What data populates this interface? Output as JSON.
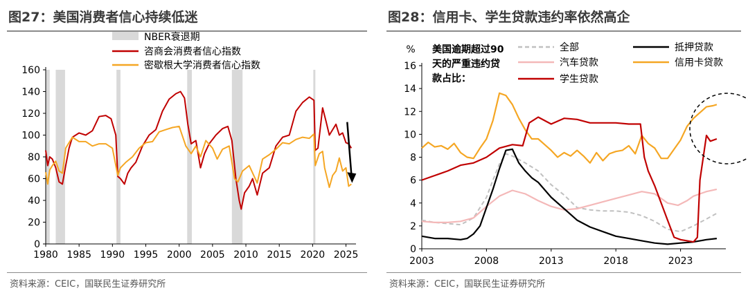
{
  "left_panel": {
    "title": "图27：美国消费者信心持续低迷",
    "source": "资料来源：CEIC，国联民生证券研究所"
  },
  "right_panel": {
    "title": "图28：信用卡、学生贷款违约率依然高企",
    "source": "资料来源：CEIC，国联民生证券研究所"
  },
  "colors": {
    "red": "#c00000",
    "orange": "#f5a623",
    "gray_band": "#d9d9d9",
    "black": "#000000",
    "pink": "#f4b8b8",
    "gray_dash": "#c0c0c0"
  },
  "chart_data": [
    {
      "type": "line",
      "title": "图27：美国消费者信心持续低迷",
      "xlabel": "",
      "ylabel": "",
      "xlim": [
        1980,
        2026.5
      ],
      "ylim": [
        0,
        160
      ],
      "xticks": [
        1980,
        1985,
        1990,
        1995,
        2000,
        2005,
        2010,
        2015,
        2020,
        2025
      ],
      "yticks": [
        0,
        20,
        40,
        60,
        80,
        100,
        120,
        140,
        160
      ],
      "legend": [
        "NBER衰退期",
        "咨商会消费者信心指数",
        "密歇根大学消费者信心指数"
      ],
      "recessions": [
        [
          1980.0,
          1980.6
        ],
        [
          1981.5,
          1982.9
        ],
        [
          1990.6,
          1991.2
        ],
        [
          2001.2,
          2001.9
        ],
        [
          2007.9,
          2009.5
        ],
        [
          2020.1,
          2020.4
        ]
      ],
      "series": [
        {
          "name": "咨商会消费者信心指数",
          "color": "#c00000",
          "x": [
            1980.0,
            1980.3,
            1980.6,
            1981.0,
            1981.5,
            1982.0,
            1982.5,
            1983.0,
            1983.5,
            1984.0,
            1985.0,
            1986.0,
            1987.0,
            1988.0,
            1989.0,
            1989.8,
            1990.5,
            1990.8,
            1991.2,
            1991.8,
            1992.3,
            1992.8,
            1993.5,
            1994.5,
            1995.5,
            1996.5,
            1997.5,
            1998.5,
            1999.5,
            2000.2,
            2000.8,
            2001.3,
            2001.8,
            2002.5,
            2003.2,
            2003.8,
            2004.5,
            2005.5,
            2006.5,
            2007.3,
            2007.9,
            2008.5,
            2009.0,
            2009.3,
            2009.8,
            2010.5,
            2011.0,
            2011.7,
            2012.5,
            2013.5,
            2014.5,
            2015.5,
            2016.5,
            2017.5,
            2018.5,
            2019.5,
            2020.2,
            2020.4,
            2020.8,
            2021.5,
            2022.0,
            2022.5,
            2023.0,
            2023.5,
            2024.0,
            2024.5,
            2025.0,
            2025.4,
            2025.8
          ],
          "values": [
            86,
            72,
            80,
            78,
            70,
            57,
            55,
            72,
            88,
            98,
            102,
            100,
            104,
            117,
            118,
            115,
            100,
            62,
            60,
            55,
            65,
            70,
            75,
            90,
            100,
            105,
            122,
            133,
            138,
            140,
            134,
            110,
            92,
            95,
            70,
            83,
            92,
            100,
            106,
            108,
            95,
            60,
            40,
            32,
            47,
            53,
            60,
            45,
            65,
            70,
            90,
            98,
            100,
            122,
            130,
            135,
            132,
            86,
            88,
            125,
            113,
            100,
            105,
            110,
            100,
            102,
            93,
            92,
            88
          ]
        },
        {
          "name": "密歇根大学消费者信心指数",
          "color": "#f5a623",
          "x": [
            1980.0,
            1980.3,
            1980.6,
            1981.0,
            1981.5,
            1982.0,
            1982.5,
            1983.0,
            1984.0,
            1985.0,
            1986.0,
            1987.0,
            1988.0,
            1989.0,
            1990.0,
            1990.8,
            1991.2,
            1992.0,
            1993.0,
            1994.0,
            1995.0,
            1996.0,
            1997.0,
            1998.0,
            1999.0,
            2000.0,
            2001.0,
            2001.8,
            2002.5,
            2003.2,
            2004.0,
            2005.0,
            2005.7,
            2006.5,
            2007.5,
            2008.3,
            2008.8,
            2009.5,
            2010.5,
            2011.7,
            2012.5,
            2013.5,
            2014.5,
            2015.5,
            2016.5,
            2017.5,
            2018.5,
            2019.5,
            2020.2,
            2020.4,
            2021.0,
            2021.5,
            2021.8,
            2022.5,
            2023.0,
            2023.5,
            2024.0,
            2024.5,
            2025.0,
            2025.4,
            2025.8
          ],
          "values": [
            66,
            55,
            68,
            72,
            76,
            67,
            65,
            88,
            98,
            94,
            94,
            90,
            92,
            92,
            88,
            63,
            70,
            75,
            80,
            88,
            93,
            94,
            103,
            105,
            107,
            108,
            90,
            83,
            90,
            80,
            95,
            88,
            78,
            87,
            90,
            60,
            57,
            67,
            72,
            56,
            78,
            82,
            87,
            93,
            92,
            96,
            98,
            97,
            101,
            72,
            83,
            85,
            70,
            52,
            63,
            67,
            79,
            67,
            70,
            53,
            55
          ]
        }
      ]
    },
    {
      "type": "line",
      "title": "图28：信用卡、学生贷款违约率依然高企",
      "xlabel": "",
      "ylabel": "%",
      "xlim": [
        2003,
        2026.5
      ],
      "ylim": [
        0,
        16
      ],
      "xticks": [
        2003,
        2008,
        2013,
        2018,
        2023
      ],
      "yticks": [
        0,
        2,
        4,
        6,
        8,
        10,
        12,
        14,
        16
      ],
      "annotation": "美国逾期超过90天的严重违约贷款占比：",
      "annotation_lines": [
        "美国逾期超过90",
        "天的严重违约贷",
        "款占比："
      ],
      "legend": [
        "全部",
        "汽车贷款",
        "学生贷款",
        "抵押贷款",
        "信用卡贷款"
      ],
      "series": [
        {
          "name": "全部",
          "color": "#c0c0c0",
          "x": [
            2003.0,
            2004.0,
            2005.0,
            2006.0,
            2007.0,
            2008.0,
            2008.5,
            2009.0,
            2009.5,
            2010.0,
            2011.0,
            2012.0,
            2013.0,
            2014.0,
            2015.0,
            2016.0,
            2017.0,
            2018.0,
            2019.0,
            2020.0,
            2021.0,
            2022.0,
            2023.0,
            2024.0,
            2025.0,
            2025.8
          ],
          "values": [
            2.5,
            2.3,
            2.2,
            2.1,
            2.7,
            4.5,
            6.0,
            7.4,
            8.3,
            8.1,
            7.5,
            6.8,
            5.6,
            4.7,
            3.6,
            3.4,
            3.3,
            3.3,
            3.2,
            2.9,
            2.4,
            1.7,
            1.5,
            2.0,
            2.6,
            3.1
          ]
        },
        {
          "name": "汽车贷款",
          "color": "#f4b8b8",
          "x": [
            2003.0,
            2004.0,
            2005.0,
            2006.0,
            2007.0,
            2008.0,
            2009.0,
            2010.0,
            2011.0,
            2012.0,
            2013.0,
            2014.0,
            2015.0,
            2016.0,
            2017.0,
            2018.0,
            2019.0,
            2020.0,
            2021.0,
            2022.0,
            2022.8,
            2023.5,
            2024.0,
            2025.0,
            2025.8
          ],
          "values": [
            2.4,
            2.3,
            2.3,
            2.4,
            2.7,
            3.7,
            4.6,
            5.1,
            4.8,
            4.2,
            3.7,
            3.4,
            3.5,
            3.8,
            4.1,
            4.4,
            4.7,
            5.0,
            4.8,
            4.0,
            3.8,
            4.2,
            4.6,
            5.0,
            5.2
          ]
        },
        {
          "name": "学生贷款",
          "color": "#c00000",
          "x": [
            2003.0,
            2004.0,
            2005.0,
            2006.0,
            2007.0,
            2008.0,
            2009.0,
            2010.0,
            2010.8,
            2011.3,
            2012.0,
            2013.0,
            2014.0,
            2015.0,
            2016.0,
            2017.0,
            2018.0,
            2019.0,
            2019.9,
            2020.2,
            2020.5,
            2021.0,
            2021.5,
            2022.0,
            2022.5,
            2023.0,
            2024.0,
            2024.3,
            2024.5,
            2025.0,
            2025.3,
            2025.8
          ],
          "values": [
            6.0,
            6.4,
            6.8,
            7.3,
            7.5,
            8.0,
            8.8,
            9.1,
            9.0,
            11.0,
            11.5,
            10.9,
            11.4,
            11.3,
            11.0,
            11.0,
            11.0,
            10.9,
            10.9,
            8.0,
            6.8,
            5.5,
            4.0,
            2.5,
            1.0,
            0.8,
            0.6,
            1.0,
            6.0,
            9.9,
            9.4,
            9.6
          ]
        },
        {
          "name": "抵押贷款",
          "color": "#000000",
          "x": [
            2003.0,
            2004.0,
            2005.0,
            2006.0,
            2006.5,
            2007.0,
            2007.5,
            2008.0,
            2008.5,
            2009.0,
            2009.5,
            2010.0,
            2010.5,
            2011.0,
            2011.5,
            2012.0,
            2013.0,
            2014.0,
            2015.0,
            2016.0,
            2017.0,
            2018.0,
            2019.0,
            2020.0,
            2021.0,
            2022.0,
            2023.0,
            2024.0,
            2025.0,
            2025.8
          ],
          "values": [
            1.1,
            0.9,
            0.9,
            0.8,
            0.9,
            1.3,
            2.0,
            3.6,
            5.2,
            7.0,
            8.6,
            8.7,
            7.5,
            6.8,
            6.2,
            5.8,
            4.5,
            3.5,
            2.5,
            1.9,
            1.5,
            1.1,
            0.9,
            0.7,
            0.5,
            0.4,
            0.5,
            0.6,
            0.8,
            0.9
          ]
        },
        {
          "name": "信用卡贷款",
          "color": "#f5a623",
          "x": [
            2003.0,
            2003.5,
            2004.0,
            2004.5,
            2005.0,
            2005.5,
            2006.0,
            2006.5,
            2007.0,
            2007.5,
            2008.0,
            2008.5,
            2009.0,
            2009.5,
            2010.0,
            2010.5,
            2011.0,
            2011.5,
            2012.0,
            2012.5,
            2013.0,
            2013.5,
            2014.0,
            2014.5,
            2015.0,
            2015.5,
            2016.0,
            2016.5,
            2017.0,
            2017.5,
            2018.0,
            2018.5,
            2019.0,
            2019.5,
            2020.0,
            2020.5,
            2021.0,
            2021.5,
            2022.0,
            2022.5,
            2023.0,
            2023.5,
            2024.0,
            2024.5,
            2025.0,
            2025.5,
            2025.8
          ],
          "values": [
            8.8,
            9.3,
            8.9,
            9.0,
            8.7,
            9.2,
            8.4,
            8.0,
            7.9,
            8.8,
            9.6,
            11.2,
            13.6,
            13.4,
            12.6,
            11.4,
            10.4,
            9.6,
            9.6,
            9.1,
            8.6,
            8.0,
            8.4,
            8.1,
            8.6,
            8.1,
            7.5,
            8.4,
            7.7,
            8.3,
            8.5,
            8.6,
            9.0,
            8.3,
            9.9,
            9.2,
            8.8,
            7.9,
            7.9,
            8.7,
            9.5,
            10.7,
            11.4,
            11.9,
            12.4,
            12.5,
            12.6
          ]
        }
      ]
    }
  ]
}
